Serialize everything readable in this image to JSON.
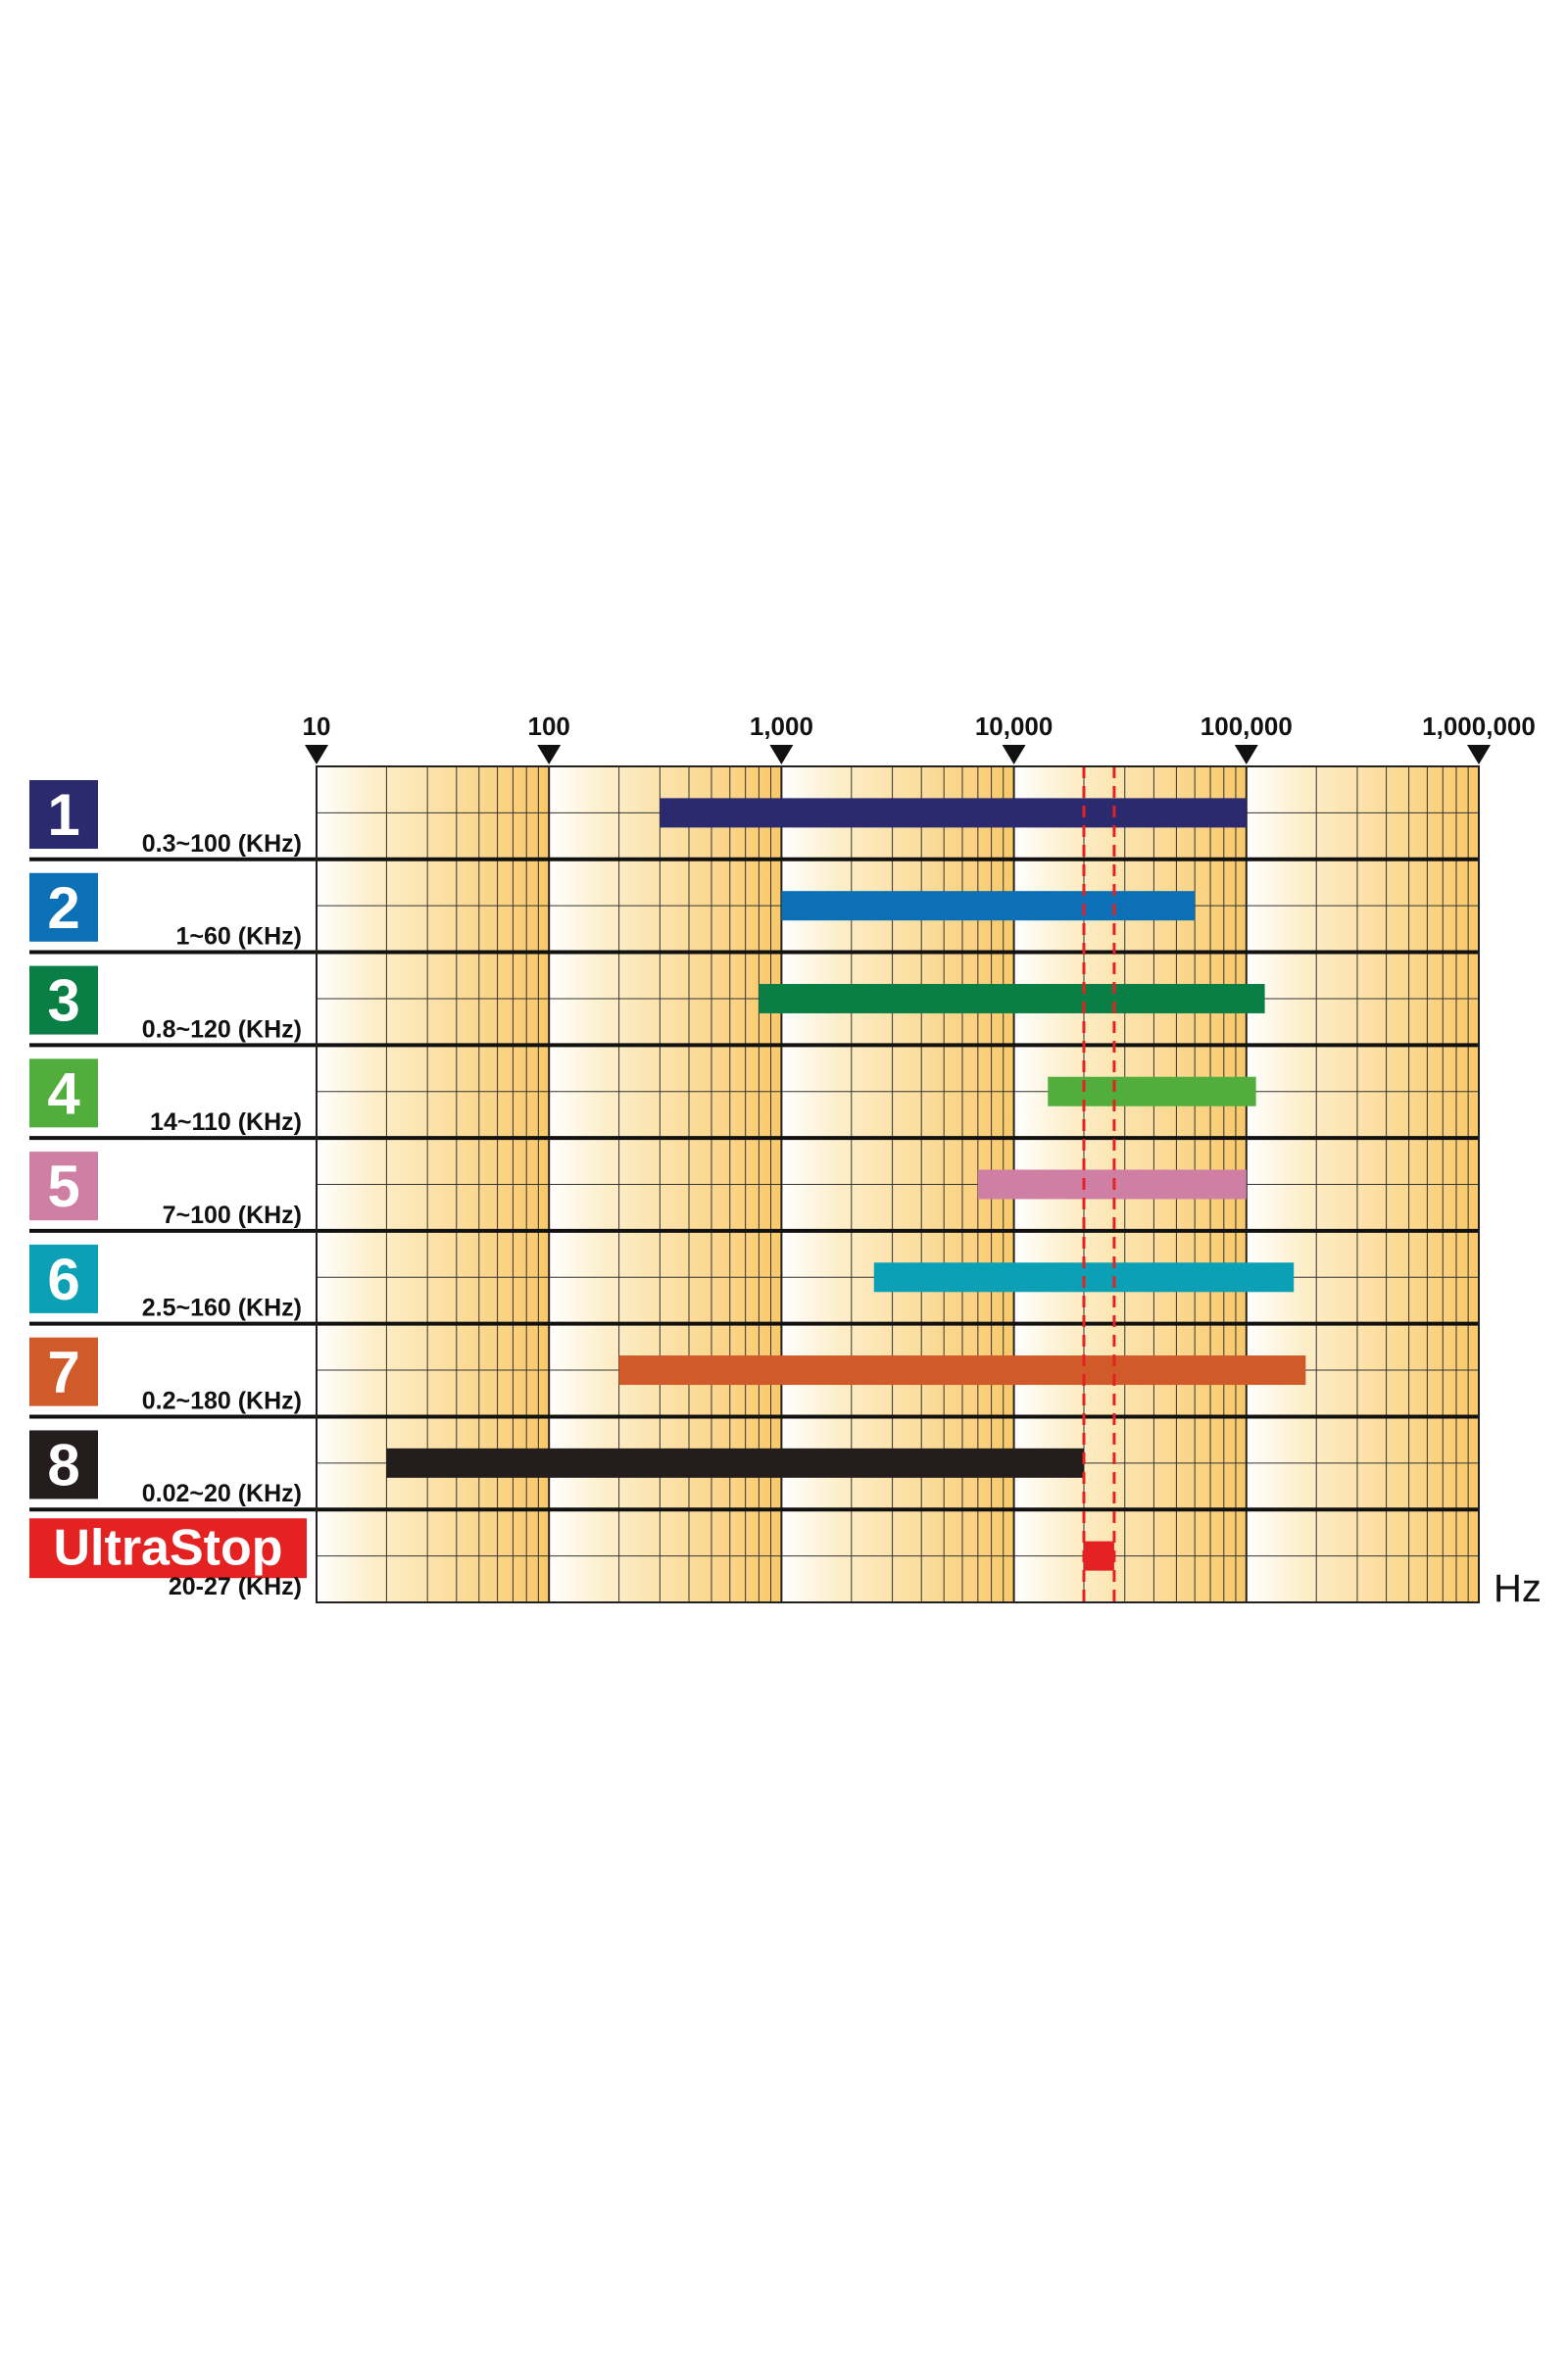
{
  "chart_data": {
    "type": "range-bar",
    "x_label": "Hz",
    "xscale": "log",
    "xlim": [
      10,
      1000000
    ],
    "xticks": [
      10,
      100,
      {
        "value": 1000,
        "label": "1,000"
      },
      {
        "value": 10000,
        "label": "10,000"
      },
      {
        "value": 100000,
        "label": "100,000"
      },
      {
        "value": 1000000,
        "label": "1,000,000"
      }
    ],
    "xminorticks": [
      20,
      30,
      40,
      50,
      60,
      70,
      80,
      90,
      200,
      300,
      400,
      500,
      600,
      700,
      800,
      900,
      2000,
      3000,
      4000,
      5000,
      6000,
      7000,
      8000,
      9000,
      20000,
      30000,
      40000,
      50000,
      60000,
      70000,
      80000,
      90000,
      200000,
      300000,
      400000,
      500000,
      600000,
      700000,
      800000,
      900000
    ],
    "grid": true,
    "series": [
      {
        "name": "1",
        "label": "0.3~100 (KHz)",
        "color": "#2b2a6e",
        "values": [
          300,
          100000
        ]
      },
      {
        "name": "2",
        "label": "1~60 (KHz)",
        "color": "#0b70b5",
        "values": [
          1000,
          60000
        ]
      },
      {
        "name": "3",
        "label": "0.8~120 (KHz)",
        "color": "#0a7f45",
        "values": [
          800,
          120000
        ]
      },
      {
        "name": "4",
        "label": "14~110 (KHz)",
        "color": "#52ae3c",
        "values": [
          14000,
          110000
        ]
      },
      {
        "name": "5",
        "label": "7~100 (KHz)",
        "color": "#cf7fa3",
        "values": [
          7000,
          100000
        ]
      },
      {
        "name": "6",
        "label": "2.5~160 (KHz)",
        "color": "#0ba0b6",
        "values": [
          2500,
          160000
        ]
      },
      {
        "name": "7",
        "label": "0.2~180 (KHz)",
        "color": "#d15a2a",
        "values": [
          200,
          180000
        ]
      },
      {
        "name": "8",
        "label": "0.02~20 (KHz)",
        "color": "#231d1d",
        "values": [
          20,
          20000
        ]
      },
      {
        "name": "UltraStop",
        "label": "20-27 (KHz)",
        "color": "#e42222",
        "values": [
          20000,
          27000
        ],
        "guide_lines": true
      }
    ]
  }
}
